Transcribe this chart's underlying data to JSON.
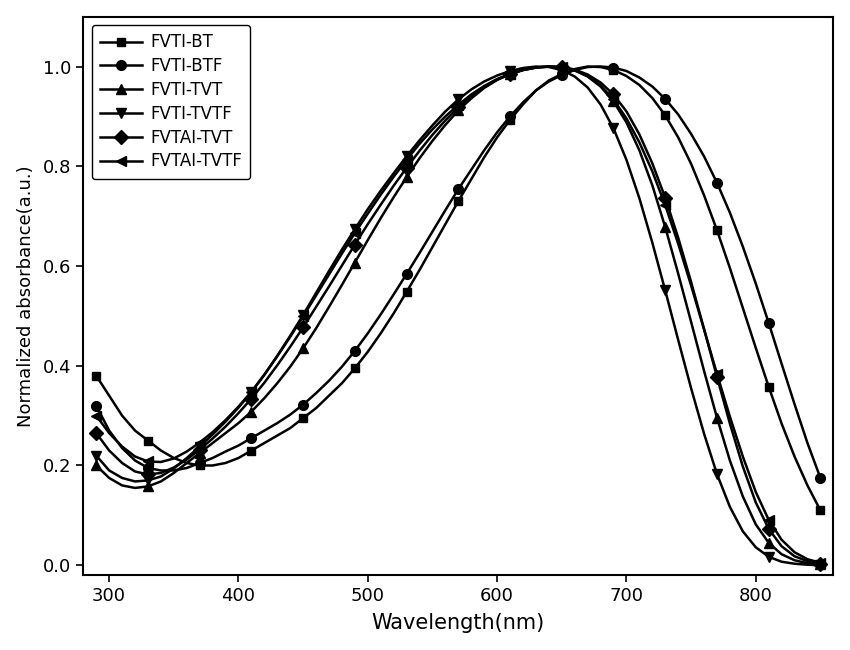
{
  "series": [
    {
      "label": "FVTI-BT",
      "marker": "s",
      "x": [
        290,
        300,
        310,
        320,
        330,
        340,
        350,
        360,
        370,
        380,
        390,
        400,
        410,
        420,
        430,
        440,
        450,
        460,
        470,
        480,
        490,
        500,
        510,
        520,
        530,
        540,
        550,
        560,
        570,
        580,
        590,
        600,
        610,
        620,
        630,
        640,
        650,
        660,
        670,
        680,
        690,
        700,
        710,
        720,
        730,
        740,
        750,
        760,
        770,
        780,
        790,
        800,
        810,
        820,
        830,
        840,
        850
      ],
      "y": [
        0.38,
        0.34,
        0.3,
        0.27,
        0.25,
        0.23,
        0.215,
        0.205,
        0.2,
        0.2,
        0.205,
        0.215,
        0.23,
        0.245,
        0.26,
        0.275,
        0.295,
        0.315,
        0.34,
        0.365,
        0.395,
        0.428,
        0.465,
        0.505,
        0.548,
        0.592,
        0.638,
        0.684,
        0.73,
        0.774,
        0.818,
        0.858,
        0.893,
        0.924,
        0.952,
        0.972,
        0.985,
        0.995,
        1.0,
        0.999,
        0.993,
        0.981,
        0.963,
        0.937,
        0.902,
        0.858,
        0.805,
        0.742,
        0.672,
        0.596,
        0.516,
        0.436,
        0.358,
        0.284,
        0.218,
        0.16,
        0.11
      ]
    },
    {
      "label": "FVTI-BTF",
      "marker": "o",
      "x": [
        290,
        300,
        310,
        320,
        330,
        340,
        350,
        360,
        370,
        380,
        390,
        400,
        410,
        420,
        430,
        440,
        450,
        460,
        470,
        480,
        490,
        500,
        510,
        520,
        530,
        540,
        550,
        560,
        570,
        580,
        590,
        600,
        610,
        620,
        630,
        640,
        650,
        660,
        670,
        680,
        690,
        700,
        710,
        720,
        730,
        740,
        750,
        760,
        770,
        780,
        790,
        800,
        810,
        820,
        830,
        840,
        850
      ],
      "y": [
        0.32,
        0.27,
        0.235,
        0.21,
        0.195,
        0.19,
        0.19,
        0.195,
        0.205,
        0.215,
        0.228,
        0.24,
        0.255,
        0.27,
        0.285,
        0.302,
        0.322,
        0.345,
        0.37,
        0.398,
        0.43,
        0.465,
        0.503,
        0.543,
        0.584,
        0.626,
        0.669,
        0.712,
        0.754,
        0.793,
        0.832,
        0.868,
        0.9,
        0.928,
        0.952,
        0.97,
        0.983,
        0.993,
        0.999,
        1.0,
        0.998,
        0.991,
        0.978,
        0.96,
        0.935,
        0.904,
        0.865,
        0.82,
        0.767,
        0.707,
        0.639,
        0.565,
        0.486,
        0.404,
        0.323,
        0.245,
        0.175
      ]
    },
    {
      "label": "FVTI-TVT",
      "marker": "^",
      "x": [
        290,
        300,
        310,
        320,
        330,
        340,
        350,
        360,
        370,
        380,
        390,
        400,
        410,
        420,
        430,
        440,
        450,
        460,
        470,
        480,
        490,
        500,
        510,
        520,
        530,
        540,
        550,
        560,
        570,
        580,
        590,
        600,
        610,
        620,
        630,
        640,
        650,
        660,
        670,
        680,
        690,
        700,
        710,
        720,
        730,
        740,
        750,
        760,
        770,
        780,
        790,
        800,
        810,
        820,
        830,
        840,
        850
      ],
      "y": [
        0.2,
        0.175,
        0.16,
        0.155,
        0.158,
        0.168,
        0.185,
        0.205,
        0.225,
        0.245,
        0.265,
        0.285,
        0.308,
        0.335,
        0.365,
        0.398,
        0.435,
        0.475,
        0.518,
        0.562,
        0.607,
        0.652,
        0.696,
        0.738,
        0.778,
        0.816,
        0.851,
        0.883,
        0.912,
        0.936,
        0.957,
        0.973,
        0.985,
        0.993,
        0.998,
        1.0,
        0.998,
        0.992,
        0.98,
        0.96,
        0.93,
        0.888,
        0.832,
        0.762,
        0.678,
        0.585,
        0.488,
        0.39,
        0.296,
        0.21,
        0.138,
        0.082,
        0.045,
        0.022,
        0.01,
        0.004,
        0.002
      ]
    },
    {
      "label": "FVTI-TVTF",
      "marker": "v",
      "x": [
        290,
        300,
        310,
        320,
        330,
        340,
        350,
        360,
        370,
        380,
        390,
        400,
        410,
        420,
        430,
        440,
        450,
        460,
        470,
        480,
        490,
        500,
        510,
        520,
        530,
        540,
        550,
        560,
        570,
        580,
        590,
        600,
        610,
        620,
        630,
        640,
        650,
        660,
        670,
        680,
        690,
        700,
        710,
        720,
        730,
        740,
        750,
        760,
        770,
        780,
        790,
        800,
        810,
        820,
        830,
        840,
        850
      ],
      "y": [
        0.22,
        0.19,
        0.175,
        0.168,
        0.17,
        0.178,
        0.194,
        0.215,
        0.238,
        0.262,
        0.288,
        0.316,
        0.347,
        0.382,
        0.42,
        0.46,
        0.502,
        0.546,
        0.59,
        0.633,
        0.674,
        0.714,
        0.751,
        0.786,
        0.82,
        0.852,
        0.882,
        0.91,
        0.934,
        0.954,
        0.97,
        0.982,
        0.991,
        0.997,
        1.0,
        0.999,
        0.993,
        0.98,
        0.958,
        0.924,
        0.876,
        0.813,
        0.736,
        0.647,
        0.551,
        0.452,
        0.355,
        0.264,
        0.183,
        0.117,
        0.068,
        0.036,
        0.017,
        0.007,
        0.003,
        0.001,
        0.0
      ]
    },
    {
      "label": "FVTAI-TVT",
      "marker": "D",
      "x": [
        290,
        300,
        310,
        320,
        330,
        340,
        350,
        360,
        370,
        380,
        390,
        400,
        410,
        420,
        430,
        440,
        450,
        460,
        470,
        480,
        490,
        500,
        510,
        520,
        530,
        540,
        550,
        560,
        570,
        580,
        590,
        600,
        610,
        620,
        630,
        640,
        650,
        660,
        670,
        680,
        690,
        700,
        710,
        720,
        730,
        740,
        750,
        760,
        770,
        780,
        790,
        800,
        810,
        820,
        830,
        840,
        850
      ],
      "y": [
        0.265,
        0.23,
        0.205,
        0.188,
        0.182,
        0.185,
        0.196,
        0.212,
        0.232,
        0.254,
        0.278,
        0.305,
        0.334,
        0.366,
        0.401,
        0.438,
        0.477,
        0.518,
        0.559,
        0.601,
        0.643,
        0.684,
        0.723,
        0.761,
        0.797,
        0.831,
        0.863,
        0.892,
        0.918,
        0.941,
        0.959,
        0.974,
        0.985,
        0.993,
        0.998,
        1.0,
        0.999,
        0.994,
        0.984,
        0.968,
        0.944,
        0.91,
        0.864,
        0.806,
        0.737,
        0.657,
        0.568,
        0.474,
        0.378,
        0.284,
        0.198,
        0.126,
        0.073,
        0.038,
        0.018,
        0.008,
        0.003
      ]
    },
    {
      "label": "FVTAI-TVTF",
      "marker": "<",
      "x": [
        290,
        300,
        310,
        320,
        330,
        340,
        350,
        360,
        370,
        380,
        390,
        400,
        410,
        420,
        430,
        440,
        450,
        460,
        470,
        480,
        490,
        500,
        510,
        520,
        530,
        540,
        550,
        560,
        570,
        580,
        590,
        600,
        610,
        620,
        630,
        640,
        650,
        660,
        670,
        680,
        690,
        700,
        710,
        720,
        730,
        740,
        750,
        760,
        770,
        780,
        790,
        800,
        810,
        820,
        830,
        840,
        850
      ],
      "y": [
        0.3,
        0.265,
        0.238,
        0.218,
        0.208,
        0.207,
        0.214,
        0.228,
        0.246,
        0.267,
        0.291,
        0.318,
        0.348,
        0.382,
        0.419,
        0.458,
        0.499,
        0.541,
        0.583,
        0.625,
        0.666,
        0.705,
        0.743,
        0.779,
        0.813,
        0.845,
        0.874,
        0.9,
        0.923,
        0.944,
        0.961,
        0.975,
        0.985,
        0.993,
        0.998,
        1.0,
        0.999,
        0.993,
        0.981,
        0.962,
        0.934,
        0.896,
        0.848,
        0.79,
        0.722,
        0.645,
        0.561,
        0.473,
        0.384,
        0.298,
        0.218,
        0.147,
        0.091,
        0.051,
        0.026,
        0.012,
        0.005
      ]
    }
  ],
  "xlabel": "Wavelength(nm)",
  "ylabel": "Normalized absorbance(a.u.)",
  "xlim": [
    280,
    860
  ],
  "ylim": [
    -0.02,
    1.1
  ],
  "xticks": [
    300,
    400,
    500,
    600,
    700,
    800
  ],
  "yticks": [
    0.0,
    0.2,
    0.4,
    0.6,
    0.8,
    1.0
  ],
  "linewidth": 1.8,
  "legend_loc": "upper left",
  "background_color": "#ffffff",
  "axes_color": "#000000",
  "legend_fontsize": 12,
  "tick_labelsize": 13,
  "xlabel_fontsize": 15,
  "ylabel_fontsize": 13
}
